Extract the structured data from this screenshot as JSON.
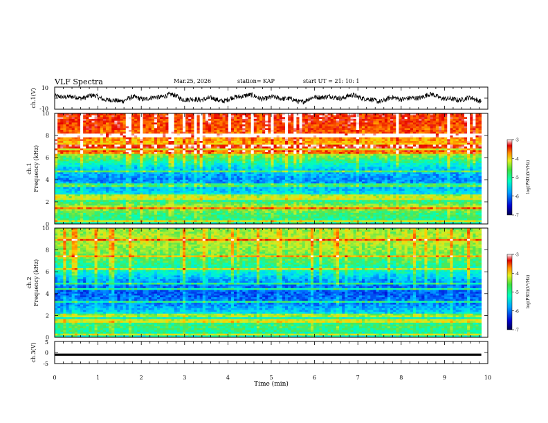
{
  "header": {
    "title": "VLF Spectra",
    "date": "Mar.25, 2026",
    "station": "station= KAP",
    "start_ut": "start  UT  =   21: 10: 1"
  },
  "colors": {
    "axis": "#000000",
    "background": "#ffffff",
    "trace": "#000000",
    "colormap": [
      "#0000b0",
      "#0050ff",
      "#00c8ff",
      "#00ffa0",
      "#50e650",
      "#d7f01e",
      "#ffd200",
      "#ff7800",
      "#e60000",
      "#ffffff"
    ]
  },
  "chart_data": [
    {
      "id": "ch1-waveform",
      "type": "line",
      "ylabel": "ch.1(V)",
      "ylim": [
        -10,
        10
      ],
      "y_ticks": [
        "10",
        "-10"
      ],
      "x_range": [
        0,
        10
      ],
      "description_series": {
        "name": "ch.1 voltage",
        "mean": 0,
        "amplitude": 4,
        "noisy": true
      }
    },
    {
      "id": "ch1-spectrogram",
      "type": "heatmap",
      "ylabel": "ch.1\nFrequency (kHz)",
      "ylim": [
        0,
        10
      ],
      "y_ticks": [
        "0",
        "2",
        "4",
        "6",
        "8",
        "10"
      ],
      "x_range": [
        0,
        10
      ],
      "data_end_min": 9.85,
      "colorbar": {
        "label": "log(PSD)(V²/Hz)",
        "range": [
          -7,
          -3
        ],
        "ticks": [
          "-3",
          "-4",
          "-5",
          "-6",
          "-7"
        ]
      },
      "levels_by_freq_khz": [
        [
          0,
          -5.2
        ],
        [
          0.5,
          -5.0
        ],
        [
          1.0,
          -4.9
        ],
        [
          1.5,
          -4.4
        ],
        [
          2.0,
          -5.0
        ],
        [
          3.0,
          -5.6
        ],
        [
          4.0,
          -5.9
        ],
        [
          5.0,
          -5.6
        ],
        [
          5.5,
          -5.2
        ],
        [
          6.0,
          -4.8
        ],
        [
          7.0,
          -4.1
        ],
        [
          8.0,
          -3.6
        ],
        [
          10.0,
          -3.3
        ]
      ],
      "bands_khz": [
        0.3,
        1.4,
        2.2,
        2.5,
        3.5,
        4.8,
        6.5,
        7.0,
        8.0
      ]
    },
    {
      "id": "ch2-spectrogram",
      "type": "heatmap",
      "ylabel": "ch.2\nFrequency (kHz)",
      "ylim": [
        0,
        10
      ],
      "y_ticks": [
        "0",
        "2",
        "4",
        "6",
        "8",
        "10"
      ],
      "x_range": [
        0,
        10
      ],
      "data_end_min": 9.85,
      "colorbar": {
        "label": "log(PSD)(V²/Hz)",
        "range": [
          -7,
          -3
        ],
        "ticks": [
          "-3",
          "-4",
          "-5",
          "-6",
          "-7"
        ]
      },
      "levels_by_freq_khz": [
        [
          0,
          -5.3
        ],
        [
          0.5,
          -5.1
        ],
        [
          1.0,
          -4.9
        ],
        [
          2.0,
          -5.4
        ],
        [
          3.0,
          -5.9
        ],
        [
          4.0,
          -6.1
        ],
        [
          5.0,
          -5.9
        ],
        [
          6.0,
          -5.3
        ],
        [
          7.0,
          -4.9
        ],
        [
          8.0,
          -4.6
        ],
        [
          9.0,
          -4.4
        ],
        [
          10.0,
          -4.6
        ]
      ],
      "bands_khz": [
        0.3,
        1.5,
        2.0,
        3.2,
        4.4,
        4.9,
        6.3,
        7.4,
        8.9
      ]
    },
    {
      "id": "ch3-trace",
      "type": "line",
      "ylabel": "ch.3(V)",
      "ylim": [
        -5,
        5
      ],
      "y_ticks": [
        "5",
        "0",
        "-5"
      ],
      "x_range": [
        0,
        10
      ],
      "series": [
        {
          "name": "ch.3 voltage",
          "value_band": [
            -1.5,
            -0.5
          ]
        }
      ]
    }
  ],
  "x_axis": {
    "label": "Time (min)",
    "ticks": [
      "0",
      "1",
      "2",
      "3",
      "4",
      "5",
      "6",
      "7",
      "8",
      "9",
      "10"
    ]
  }
}
